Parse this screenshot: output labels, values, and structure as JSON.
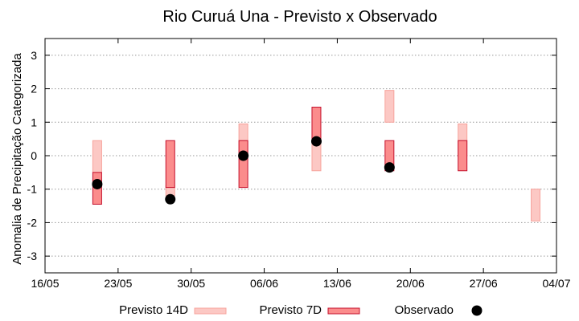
{
  "chart_data": {
    "type": "range-bar",
    "title": "Rio Curuá Una - Previsto x Observado",
    "ylabel": "Anomalia de Precipitação Categorizada",
    "xlabel": "",
    "x_ticks": [
      "16/05",
      "23/05",
      "30/05",
      "06/06",
      "13/06",
      "20/06",
      "27/06",
      "04/07"
    ],
    "x_range": [
      "16/05",
      "04/07"
    ],
    "ylim": [
      -3.5,
      3.5
    ],
    "y_ticks": [
      -3,
      -2,
      -1,
      0,
      1,
      2,
      3
    ],
    "grid": "horizontal dotted",
    "legend_position": "bottom",
    "series": [
      {
        "name": "Previsto 14D",
        "kind": "range",
        "fill": "#fcc8c4",
        "stroke": "#f7a39c",
        "points": [
          {
            "date": "21/05",
            "low": -0.5,
            "high": 0.45
          },
          {
            "date": "28/05",
            "low": -1.2,
            "high": -0.9
          },
          {
            "date": "04/06",
            "low": 0.0,
            "high": 0.95
          },
          {
            "date": "11/06",
            "low": -0.45,
            "high": 0.45
          },
          {
            "date": "18/06",
            "low": 1.0,
            "high": 1.95
          },
          {
            "date": "25/06",
            "low": 0.0,
            "high": 0.95
          },
          {
            "date": "02/07",
            "low": -1.95,
            "high": -1.0
          }
        ]
      },
      {
        "name": "Previsto 7D",
        "kind": "range",
        "fill": "#fb8c8c",
        "stroke": "#c4102c",
        "points": [
          {
            "date": "21/05",
            "low": -1.45,
            "high": -0.5
          },
          {
            "date": "28/05",
            "low": -0.95,
            "high": 0.45
          },
          {
            "date": "04/06",
            "low": -0.95,
            "high": 0.45
          },
          {
            "date": "11/06",
            "low": 0.45,
            "high": 1.45
          },
          {
            "date": "18/06",
            "low": -0.45,
            "high": 0.45
          },
          {
            "date": "25/06",
            "low": -0.45,
            "high": 0.45
          }
        ]
      },
      {
        "name": "Observado",
        "kind": "point",
        "color": "#000000",
        "points": [
          {
            "date": "21/05",
            "value": -0.85
          },
          {
            "date": "28/05",
            "value": -1.3
          },
          {
            "date": "04/06",
            "value": 0.0
          },
          {
            "date": "11/06",
            "value": 0.43
          },
          {
            "date": "18/06",
            "value": -0.35
          }
        ]
      }
    ]
  }
}
